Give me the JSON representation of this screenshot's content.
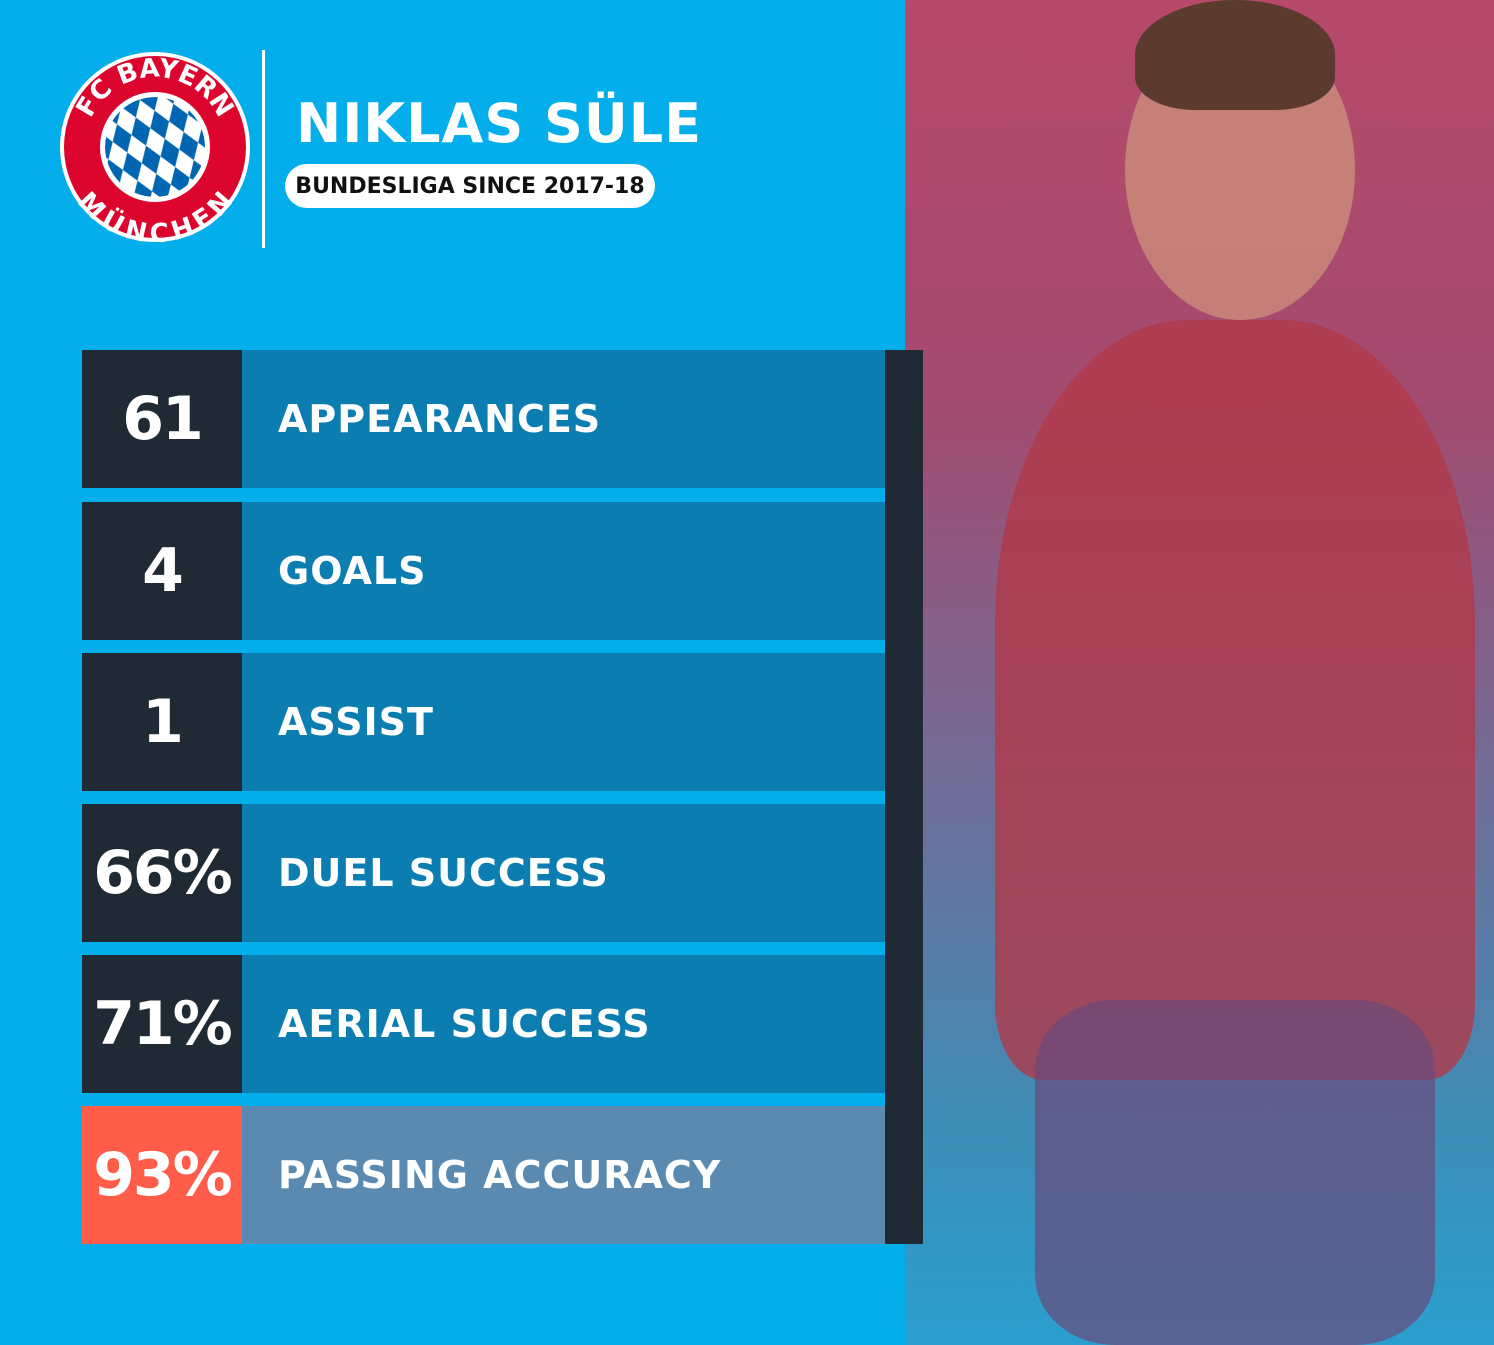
{
  "header": {
    "club_logo_text": [
      "FC BAYERN",
      "MÜNCHEN"
    ],
    "player_name": "NIKLAS SÜLE",
    "subtitle": "BUNDESLIGA SINCE 2017-18"
  },
  "stats": [
    {
      "value": "61",
      "label": "APPEARANCES"
    },
    {
      "value": "4",
      "label": "GOALS"
    },
    {
      "value": "1",
      "label": "ASSIST"
    },
    {
      "value": "66%",
      "label": "DUEL SUCCESS"
    },
    {
      "value": "71%",
      "label": "AERIAL SUCCESS"
    },
    {
      "value": "93%",
      "label": "PASSING ACCURACY",
      "highlight": true
    }
  ],
  "colors": {
    "background": "#03aeea",
    "stat_number_bg": "#1f2a35",
    "stat_label_bg": "#0b7db0",
    "highlight_number_bg": "#ff5c49",
    "highlight_label_bg": "#5b8ab1",
    "club_red": "#dc052d",
    "club_blue": "#0066b2"
  }
}
